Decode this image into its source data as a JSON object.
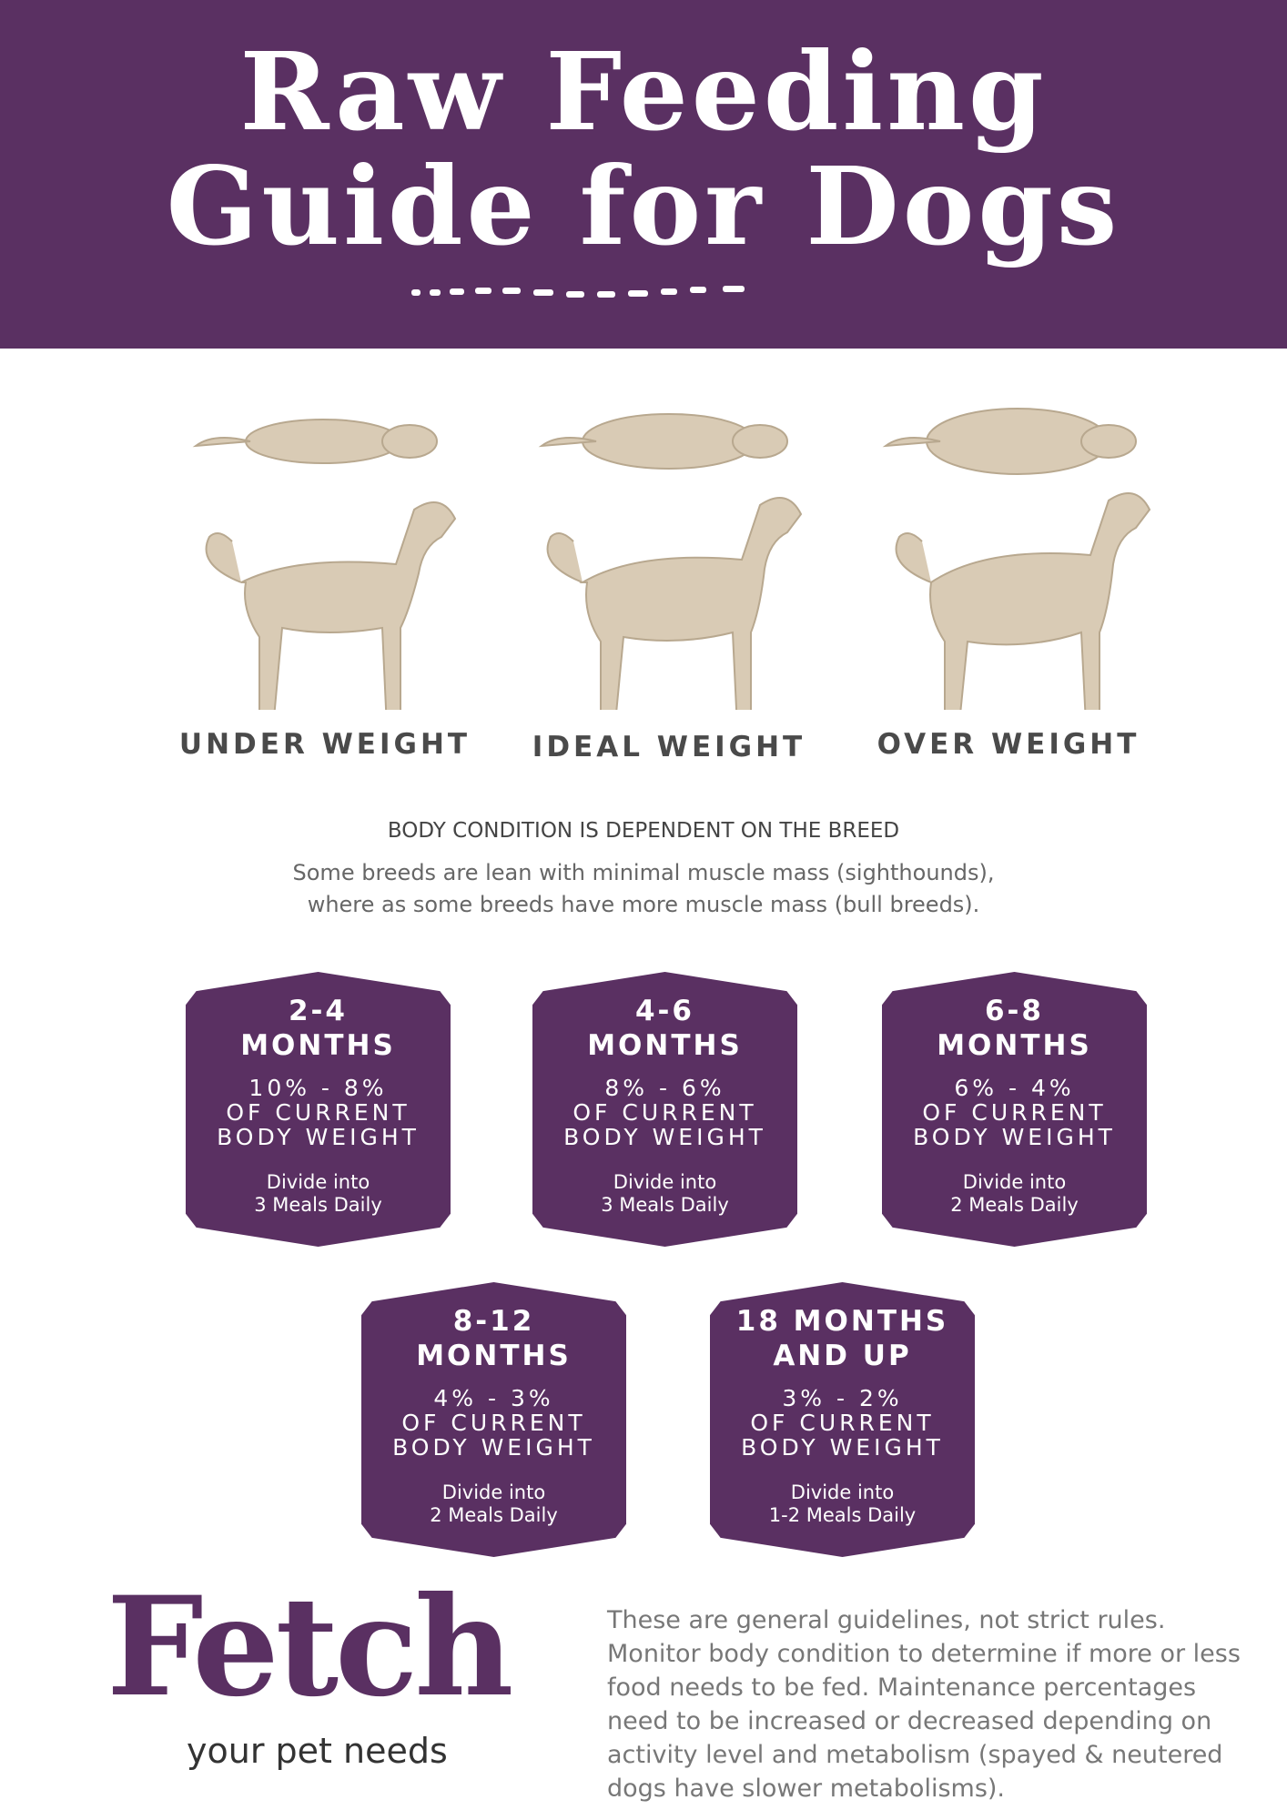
{
  "header": {
    "title_line1": "Raw Feeding",
    "title_line2": "Guide for Dogs"
  },
  "colors": {
    "brand": "#5a3062",
    "dog": "#d9cbb5"
  },
  "dogs": [
    {
      "label": "UNDER WEIGHT"
    },
    {
      "label": "IDEAL WEIGHT"
    },
    {
      "label": "OVER WEIGHT"
    }
  ],
  "body_condition": {
    "title": "BODY CONDITION IS DEPENDENT ON THE BREED",
    "line1": "Some breeds are lean with minimal muscle mass (sighthounds),",
    "line2": "where as some breeds have more muscle mass (bull breeds)."
  },
  "badges": [
    {
      "age1": "2-4",
      "age2": "MONTHS",
      "pct": "10% - 8%",
      "of": "OF CURRENT",
      "bw": "BODY WEIGHT",
      "div": "Divide into",
      "meals": "3 Meals Daily"
    },
    {
      "age1": "4-6",
      "age2": "MONTHS",
      "pct": "8% - 6%",
      "of": "OF CURRENT",
      "bw": "BODY WEIGHT",
      "div": "Divide into",
      "meals": "3 Meals Daily"
    },
    {
      "age1": "6-8",
      "age2": "MONTHS",
      "pct": "6% - 4%",
      "of": "OF CURRENT",
      "bw": "BODY WEIGHT",
      "div": "Divide into",
      "meals": "2 Meals Daily"
    },
    {
      "age1": "8-12",
      "age2": "MONTHS",
      "pct": "4% - 3%",
      "of": "OF CURRENT",
      "bw": "BODY WEIGHT",
      "div": "Divide into",
      "meals": "2 Meals Daily"
    },
    {
      "age1": "18 MONTHS",
      "age2": "AND UP",
      "pct": "3% - 2%",
      "of": "OF CURRENT",
      "bw": "BODY WEIGHT",
      "div": "Divide into",
      "meals": "1-2 Meals Daily"
    }
  ],
  "logo": {
    "name": "Fetch",
    "tagline": "your pet needs"
  },
  "footer": {
    "text": "These are general guidelines, not strict rules. Monitor body condition to determine if more or less food needs to be fed. Maintenance percentages need to be increased or decreased depending on activity level and metabolism (spayed & neutered dogs have slower metabolisms)."
  }
}
